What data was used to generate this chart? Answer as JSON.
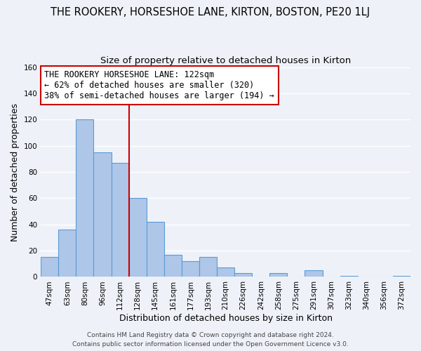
{
  "title": "THE ROOKERY, HORSESHOE LANE, KIRTON, BOSTON, PE20 1LJ",
  "subtitle": "Size of property relative to detached houses in Kirton",
  "xlabel": "Distribution of detached houses by size in Kirton",
  "ylabel": "Number of detached properties",
  "bar_labels": [
    "47sqm",
    "63sqm",
    "80sqm",
    "96sqm",
    "112sqm",
    "128sqm",
    "145sqm",
    "161sqm",
    "177sqm",
    "193sqm",
    "210sqm",
    "226sqm",
    "242sqm",
    "258sqm",
    "275sqm",
    "291sqm",
    "307sqm",
    "323sqm",
    "340sqm",
    "356sqm",
    "372sqm"
  ],
  "bar_heights": [
    15,
    36,
    120,
    95,
    87,
    60,
    42,
    17,
    12,
    15,
    7,
    3,
    0,
    3,
    0,
    5,
    0,
    1,
    0,
    0,
    1
  ],
  "bar_color": "#aec6e8",
  "bar_edge_color": "#5b9bd5",
  "reference_line_x": 4.5,
  "reference_line_color": "#cc0000",
  "annotation_text": "THE ROOKERY HORSESHOE LANE: 122sqm\n← 62% of detached houses are smaller (320)\n38% of semi-detached houses are larger (194) →",
  "annotation_box_color": "#ffffff",
  "annotation_box_edge_color": "#cc0000",
  "ylim": [
    0,
    160
  ],
  "yticks": [
    0,
    20,
    40,
    60,
    80,
    100,
    120,
    140,
    160
  ],
  "footer_line1": "Contains HM Land Registry data © Crown copyright and database right 2024.",
  "footer_line2": "Contains public sector information licensed under the Open Government Licence v3.0.",
  "background_color": "#eef2f8",
  "grid_color": "#ffffff",
  "title_fontsize": 10.5,
  "subtitle_fontsize": 9.5,
  "axis_label_fontsize": 9,
  "tick_fontsize": 7.5,
  "annotation_fontsize": 8.5,
  "footer_fontsize": 6.5
}
